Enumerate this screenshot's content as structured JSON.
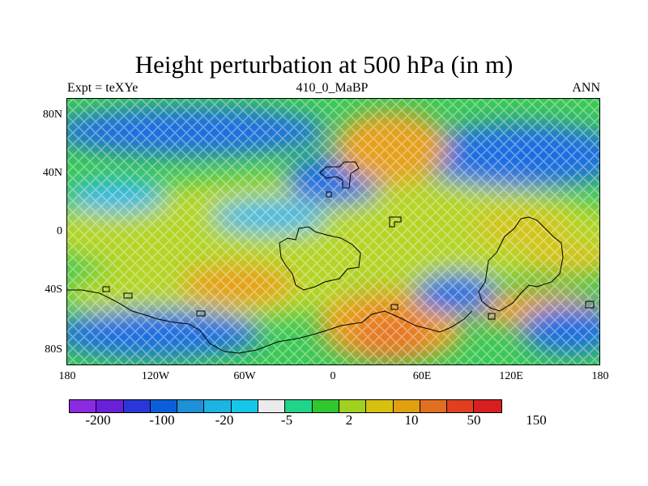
{
  "title": "Height perturbation at 500 hPa (in m)",
  "subtitle_left": "Expt = teXYe",
  "subtitle_center": "410_0_MaBP",
  "subtitle_right": "ANN",
  "lat_labels": [
    "80N",
    "40N",
    "0",
    "40S",
    "80S"
  ],
  "lon_labels": [
    "180",
    "120W",
    "60W",
    "0",
    "60E",
    "120E",
    "180"
  ],
  "colorbar": {
    "labels": [
      "-200",
      "-100",
      "-20",
      "-5",
      "2",
      "10",
      "50",
      "150"
    ],
    "colors": [
      "#8a2be2",
      "#6a1fd8",
      "#2a37d8",
      "#0a5fd8",
      "#1e90d8",
      "#1cb4e0",
      "#17c6e8",
      "#ebebeb",
      "#20d48a",
      "#30c830",
      "#a0d020",
      "#d8c010",
      "#e0a010",
      "#e07020",
      "#e04020",
      "#d81f1f"
    ]
  },
  "map": {
    "projection": "cylindrical equidistant",
    "lat_range": [
      -90,
      90
    ],
    "lon_range": [
      -180,
      180
    ],
    "field_colors": {
      "blue": "#1a6ee0",
      "cyan": "#2fb8e8",
      "green": "#3cc856",
      "yellowgreen": "#b4d428",
      "yellow": "#d6c21a",
      "orange": "#e6a01a",
      "darkorange": "#e67828"
    },
    "coastline_color": "#000000"
  }
}
